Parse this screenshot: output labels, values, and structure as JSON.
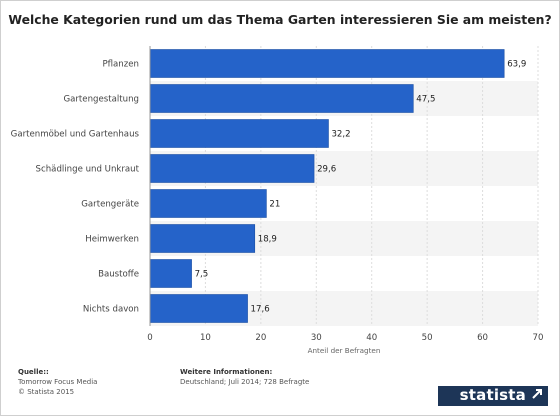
{
  "chart_data": {
    "type": "bar",
    "orientation": "horizontal",
    "title": "Welche Kategorien rund um das Thema Garten interessieren Sie am meisten?",
    "categories": [
      "Pflanzen",
      "Gartengestaltung",
      "Gartenmöbel und Gartenhaus",
      "Schädlinge und Unkraut",
      "Gartengeräte",
      "Heimwerken",
      "Baustoffe",
      "Nichts davon"
    ],
    "values": [
      63.9,
      47.5,
      32.2,
      29.6,
      21,
      18.9,
      7.5,
      17.6
    ],
    "value_labels": [
      "63,9",
      "47,5",
      "32,2",
      "29,6",
      "21",
      "18,9",
      "7,5",
      "17,6"
    ],
    "xlabel": "Anteil der Befragten",
    "ylabel": "",
    "xlim": [
      0,
      70
    ],
    "ticks": [
      0,
      10,
      20,
      30,
      40,
      50,
      60,
      70
    ],
    "grid": true,
    "bar_color": "#2563c9"
  },
  "footer": {
    "source_heading": "Quelle::",
    "source_line1": "Tomorrow Focus Media",
    "source_line2": "© Statista 2015",
    "info_heading": "Weitere Informationen:",
    "info_line": "Deutschland; Juli 2014; 728 Befragte"
  },
  "brand": {
    "name": "statista",
    "color": "#1d3557"
  }
}
